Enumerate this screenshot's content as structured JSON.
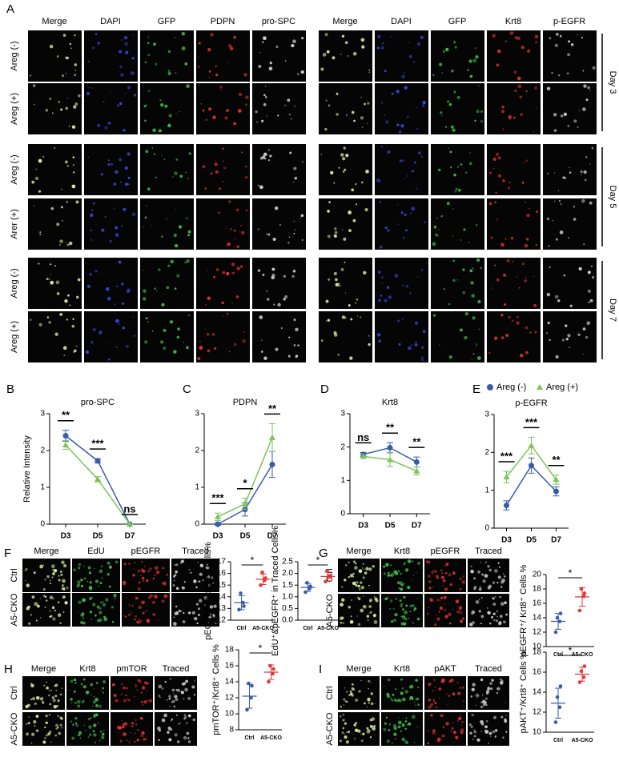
{
  "figure": {
    "panel_a": {
      "letter": "A",
      "left_headers": [
        "Merge",
        "DAPI",
        "GFP",
        "PDPN",
        "pro-SPC"
      ],
      "right_headers": [
        "Merge",
        "DAPI",
        "GFP",
        "Krt8",
        "p-EGFR"
      ],
      "row_labels": [
        "Areg (-)",
        "Areg (+)",
        "Areg (-)",
        "Arer (+)",
        "Areg (-)",
        "Areg (+)"
      ],
      "days": [
        "Day 3",
        "Day 5",
        "Day 7"
      ]
    },
    "chart_letters": [
      "B",
      "C",
      "D",
      "E"
    ],
    "panels": [
      {
        "letter": "F",
        "headers": [
          "Merge",
          "EdU",
          "pEGFR",
          "Traced"
        ],
        "rows": [
          "Ctrl",
          "A5-CKO"
        ]
      },
      {
        "letter": "G",
        "headers": [
          "Merge",
          "Krt8",
          "pEGFR",
          "Traced"
        ],
        "rows": [
          "Ctrl",
          "A5-CKO"
        ]
      },
      {
        "letter": "H",
        "headers": [
          "Merge",
          "Krt8",
          "pmTOR",
          "Traced"
        ],
        "rows": [
          "Ctrl",
          "A5-CKO"
        ]
      },
      {
        "letter": "I",
        "headers": [
          "Merge",
          "Krt8",
          "pAKT",
          "Traced"
        ],
        "rows": [
          "Ctrl",
          "A5-CKO"
        ]
      }
    ]
  },
  "chart_data": [
    {
      "type": "line",
      "title": "pro-SPC",
      "y_label": "Relative Intensity",
      "categories": [
        "D3",
        "D5",
        "D7"
      ],
      "ylim": [
        0,
        3
      ],
      "yticks": [
        0,
        1,
        2,
        3
      ],
      "annotations": [
        "**",
        "***",
        "ns"
      ],
      "series": [
        {
          "color": "#3a5bab",
          "marker": "circle",
          "values": [
            2.4,
            1.72,
            0.0
          ],
          "errors": [
            0.15,
            0.06,
            0.0
          ]
        },
        {
          "color": "#7cc45a",
          "marker": "triangle",
          "values": [
            2.15,
            1.22,
            0.0
          ],
          "errors": [
            0.12,
            0.07,
            0.0
          ]
        }
      ]
    },
    {
      "type": "line",
      "title": "PDPN",
      "categories": [
        "D3",
        "D5",
        "D7"
      ],
      "ylim": [
        0,
        3
      ],
      "yticks": [
        0,
        1,
        2,
        3
      ],
      "annotations": [
        "***",
        "*",
        "**"
      ],
      "series": [
        {
          "color": "#3a5bab",
          "marker": "circle",
          "values": [
            0.0,
            0.4,
            1.62
          ],
          "errors": [
            0.03,
            0.18,
            0.35
          ]
        },
        {
          "color": "#7cc45a",
          "marker": "triangle",
          "values": [
            0.2,
            0.55,
            2.35
          ],
          "errors": [
            0.1,
            0.15,
            0.38
          ]
        }
      ]
    },
    {
      "type": "line",
      "title": "Krt8",
      "categories": [
        "D3",
        "D5",
        "D7"
      ],
      "ylim": [
        0,
        3
      ],
      "yticks": [
        0,
        1,
        2,
        3
      ],
      "annotations": [
        "ns",
        "**",
        "**"
      ],
      "series": [
        {
          "color": "#3a5bab",
          "marker": "circle",
          "values": [
            1.78,
            1.98,
            1.55
          ],
          "errors": [
            0.06,
            0.15,
            0.15
          ]
        },
        {
          "color": "#7cc45a",
          "marker": "triangle",
          "values": [
            1.72,
            1.62,
            1.28
          ],
          "errors": [
            0.06,
            0.2,
            0.12
          ]
        }
      ]
    },
    {
      "type": "line",
      "title": "p-EGFR",
      "categories": [
        "D3",
        "D5",
        "D7"
      ],
      "legend": "top",
      "ylim": [
        0,
        3
      ],
      "yticks": [
        0,
        1,
        2,
        3
      ],
      "annotations": [
        "***",
        "***",
        "**"
      ],
      "series": [
        {
          "name": "Areg (-)",
          "color": "#3a5bab",
          "marker": "circle",
          "values": [
            0.6,
            1.65,
            0.97
          ],
          "errors": [
            0.12,
            0.2,
            0.12
          ]
        },
        {
          "name": "Areg (+)",
          "color": "#7cc45a",
          "marker": "triangle",
          "values": [
            1.35,
            2.18,
            1.28
          ],
          "errors": [
            0.15,
            0.22,
            0.12
          ]
        }
      ]
    },
    {
      "type": "dot",
      "y_label": "pEGFR⁺ in traced cells%",
      "categories": [
        "Ctrl",
        "A5-CKO"
      ],
      "colors": [
        "#3a5bab",
        "#e0383a"
      ],
      "ylim": [
        12,
        17
      ],
      "yticks": [
        12,
        13,
        14,
        15,
        16,
        17
      ],
      "annotation": "*",
      "groups": [
        [
          12.9,
          13.5,
          14.3,
          13.2
        ],
        [
          15.0,
          15.4,
          16.1,
          15.6
        ]
      ],
      "means": [
        13.5,
        15.5
      ],
      "sd": [
        0.6,
        0.45
      ]
    },
    {
      "type": "dot",
      "y_label": "EdU⁺&pEGFR⁺ in Traced Cells%",
      "categories": [
        "Ctrl",
        "A5-CKO"
      ],
      "colors": [
        "#3a5bab",
        "#e0383a"
      ],
      "ylim": [
        0,
        2.5
      ],
      "yticks": [
        {
          "value": 0,
          "label": "0.0"
        },
        0.5,
        {
          "value": 1,
          "label": "1.0"
        },
        1.5,
        {
          "value": 2,
          "label": "2.0"
        },
        2.5
      ],
      "annotation": "*",
      "groups": [
        [
          1.2,
          1.35,
          1.6,
          1.45
        ],
        [
          1.65,
          1.85,
          2.1,
          1.9
        ]
      ],
      "means": [
        1.4,
        1.87
      ],
      "sd": [
        0.17,
        0.19
      ]
    },
    {
      "type": "dot",
      "y_label": "pEGFR⁺/ Krt8⁺ Cells %",
      "categories": [
        "Ctrl",
        "A5-CKO"
      ],
      "colors": [
        "#3a5bab",
        "#e0383a"
      ],
      "ylim": [
        10,
        20
      ],
      "yticks": [
        10,
        12,
        14,
        16,
        18,
        20
      ],
      "annotation": "*",
      "groups": [
        [
          12.0,
          13.5,
          14.0,
          14.6
        ],
        [
          15.0,
          17.0,
          18.0,
          17.4
        ]
      ],
      "means": [
        13.5,
        16.9
      ],
      "sd": [
        1.1,
        1.3
      ]
    },
    {
      "type": "dot",
      "y_label": "pmTOR⁺/Krt8⁺ Cells %",
      "categories": [
        "Ctrl",
        "A5-CKO"
      ],
      "colors": [
        "#3a5bab",
        "#e0383a"
      ],
      "ylim": [
        8,
        18
      ],
      "yticks": [
        8,
        10,
        12,
        14,
        16,
        18
      ],
      "annotation": "*",
      "groups": [
        [
          10.5,
          12.0,
          13.8,
          13.5
        ],
        [
          14.0,
          15.0,
          16.0,
          15.6
        ]
      ],
      "means": [
        12.2,
        15.2
      ],
      "sd": [
        1.5,
        0.9
      ]
    },
    {
      "type": "dot",
      "y_label": "pAKT⁺/Krt8⁺ Cells %",
      "categories": [
        "Ctrl",
        "A5-CKO"
      ],
      "colors": [
        "#3a5bab",
        "#e0383a"
      ],
      "ylim": [
        10,
        18
      ],
      "yticks": [
        10,
        12,
        14,
        16,
        18
      ],
      "annotation": "*",
      "groups": [
        [
          11.0,
          12.5,
          13.5,
          14.6
        ],
        [
          15.0,
          15.5,
          16.1,
          16.6
        ]
      ],
      "means": [
        12.9,
        15.8
      ],
      "sd": [
        1.5,
        0.7
      ]
    }
  ]
}
